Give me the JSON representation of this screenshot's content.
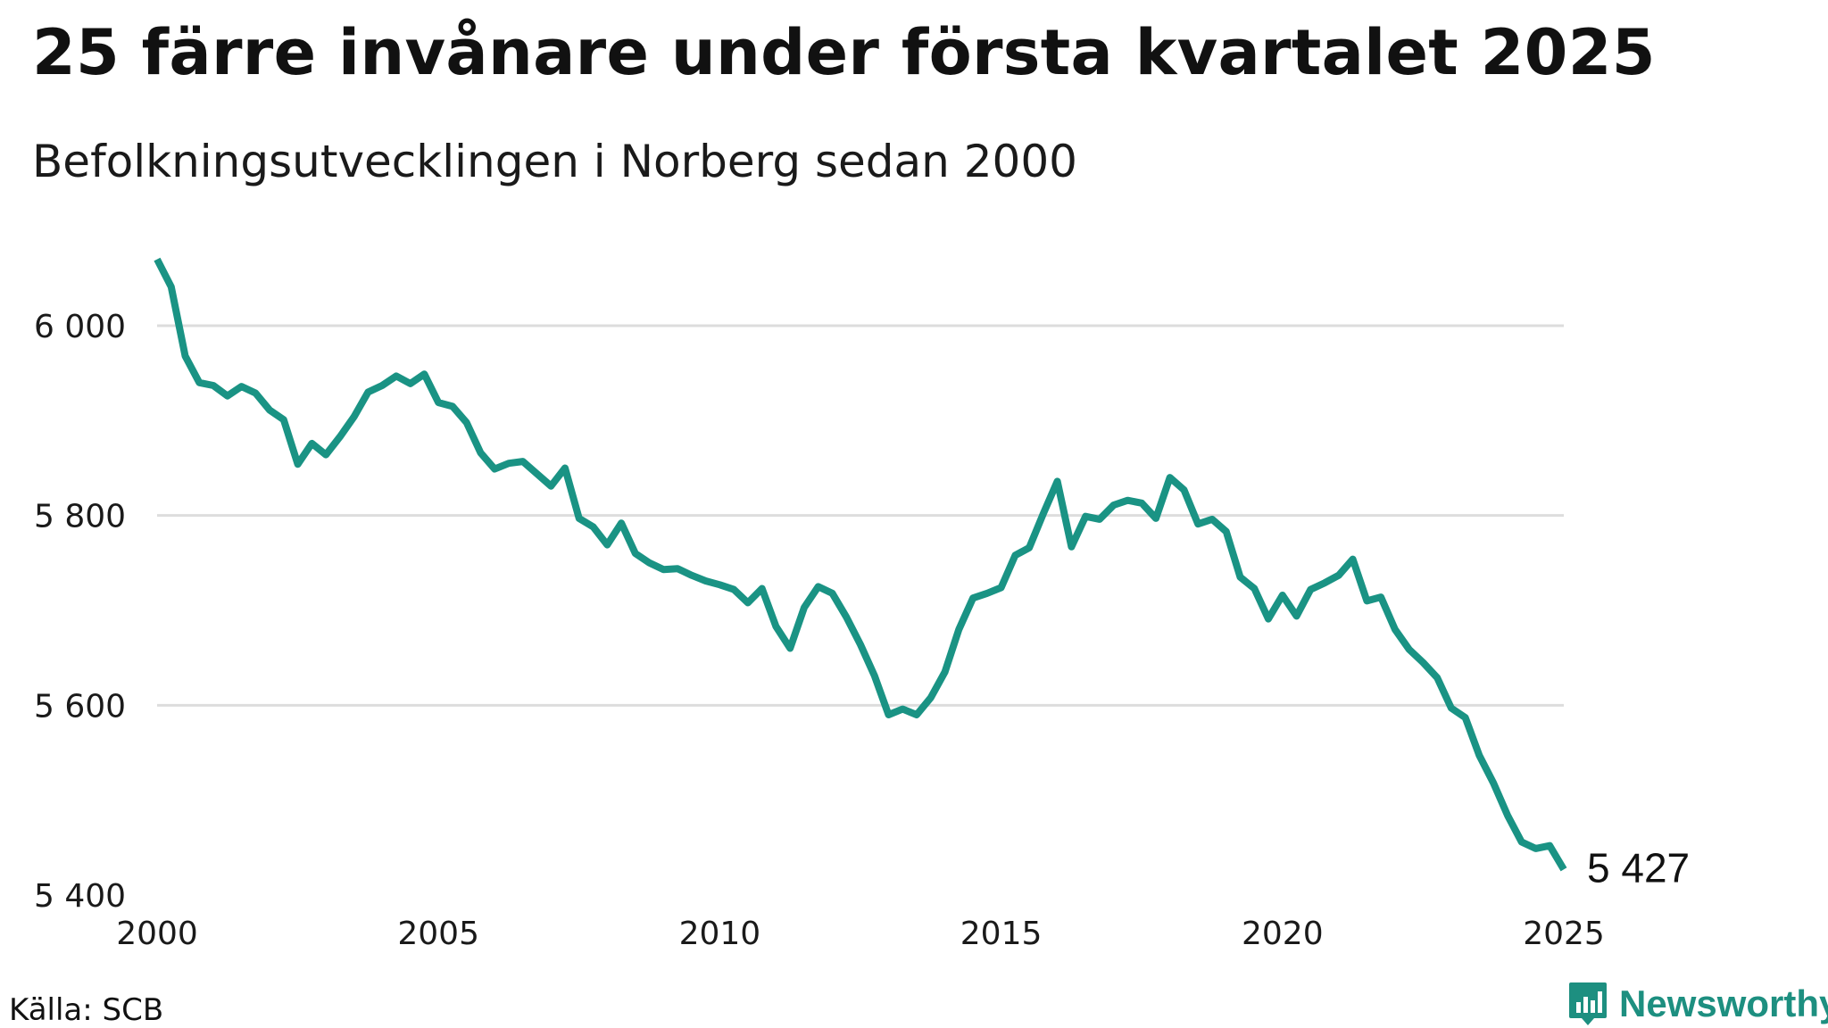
{
  "title": "25 färre invånare under första kvartalet 2025",
  "subtitle": "Befolkningsutvecklingen i Norberg sedan 2000",
  "source": "Källa: SCB",
  "brand": {
    "name": "Newsworthy",
    "icon": "newsworthy-logo-icon",
    "color": "#1d8f80"
  },
  "colors": {
    "line": "#1a9384",
    "grid": "#dddddd"
  },
  "chart_data": {
    "type": "line",
    "title": "25 färre invånare under första kvartalet 2025",
    "subtitle": "Befolkningsutvecklingen i Norberg sedan 2000",
    "xlabel": "",
    "ylabel": "",
    "xlim": [
      2000,
      2025
    ],
    "ylim": [
      5400,
      6070
    ],
    "y_ticks": [
      5400,
      5600,
      5800,
      6000
    ],
    "y_tick_labels": [
      "5 400",
      "5 600",
      "5 800",
      "6 000"
    ],
    "x_ticks": [
      2000,
      2005,
      2010,
      2015,
      2020,
      2025
    ],
    "x_tick_labels": [
      "2000",
      "2005",
      "2010",
      "2015",
      "2020",
      "2025"
    ],
    "grid": "horizontal",
    "end_label": "5 427",
    "series": [
      {
        "values": [
          6070,
          6041,
          5968,
          5940,
          5937,
          5926,
          5936,
          5929,
          5911,
          5901,
          5854,
          5876,
          5864,
          5883,
          5904,
          5930,
          5937,
          5947,
          5939,
          5949,
          5919,
          5915,
          5898,
          5866,
          5849,
          5855,
          5857,
          5844,
          5831,
          5850,
          5797,
          5788,
          5769,
          5792,
          5760,
          5750,
          5743,
          5744,
          5737,
          5731,
          5727,
          5722,
          5708,
          5723,
          5683,
          5660,
          5703,
          5725,
          5718,
          5693,
          5664,
          5631,
          5590,
          5596,
          5590,
          5608,
          5635,
          5680,
          5713,
          5718,
          5724,
          5758,
          5766,
          5802,
          5836,
          5767,
          5799,
          5796,
          5811,
          5816,
          5813,
          5797,
          5840,
          5827,
          5791,
          5796,
          5783,
          5735,
          5723,
          5691,
          5716,
          5694,
          5722,
          5729,
          5737,
          5754,
          5710,
          5714,
          5680,
          5659,
          5645,
          5629,
          5597,
          5587,
          5547,
          5518,
          5484,
          5456,
          5449,
          5452,
          5427
        ]
      }
    ]
  }
}
